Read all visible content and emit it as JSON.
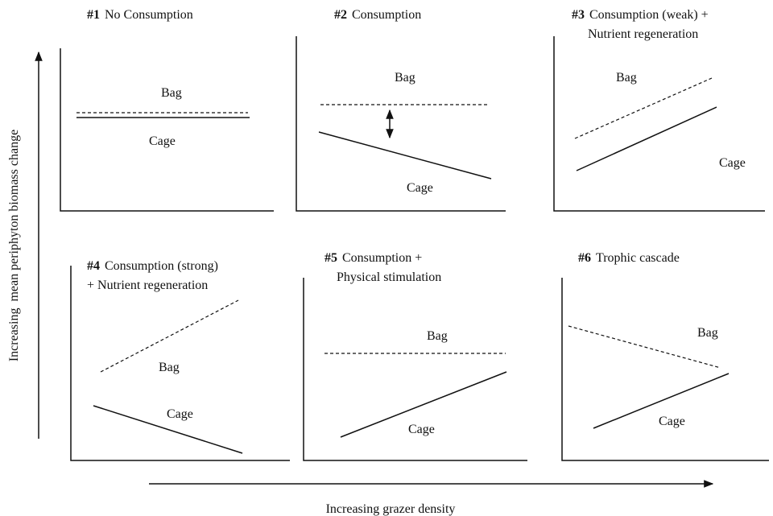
{
  "y_axis_label": "Increasing  mean periphyton biomass change",
  "x_axis_label": "Increasing grazer density",
  "panels": [
    {
      "number": "#1",
      "title": [
        "No Consumption"
      ],
      "bag": "Bag",
      "cage": "Cage"
    },
    {
      "number": "#2",
      "title": [
        "Consumption"
      ],
      "bag": "Bag",
      "cage": "Cage"
    },
    {
      "number": "#3",
      "title": [
        "Consumption (weak) +",
        "Nutrient regeneration"
      ],
      "bag": "Bag",
      "cage": "Cage"
    },
    {
      "number": "#4",
      "title": [
        "Consumption (strong)",
        "+ Nutrient regeneration"
      ],
      "bag": "Bag",
      "cage": "Cage"
    },
    {
      "number": "#5",
      "title": [
        "Consumption +",
        "Physical stimulation"
      ],
      "bag": "Bag",
      "cage": "Cage"
    },
    {
      "number": "#6",
      "title": [
        "Trophic cascade"
      ],
      "bag": "Bag",
      "cage": "Cage"
    }
  ]
}
